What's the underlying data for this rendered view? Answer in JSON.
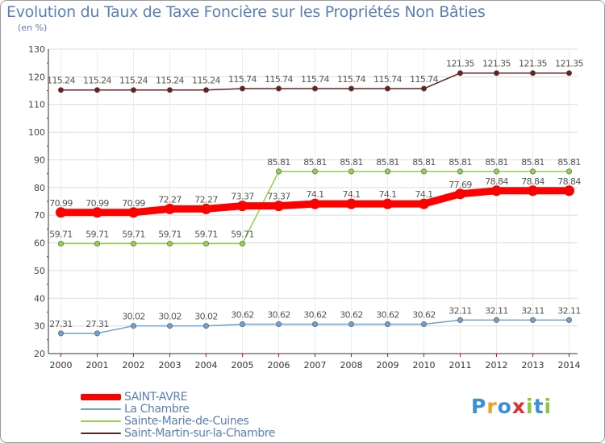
{
  "chart_data": {
    "type": "line",
    "title": "Evolution du Taux de Taxe Foncière sur les Propriétés Non Bâties",
    "ylabel": "(en %)",
    "xlabel": "",
    "ylim": [
      20,
      130
    ],
    "yticks": [
      20,
      30,
      40,
      50,
      60,
      70,
      80,
      90,
      100,
      110,
      120,
      130
    ],
    "categories": [
      "2000",
      "2001",
      "2002",
      "2003",
      "2004",
      "2005",
      "2006",
      "2007",
      "2008",
      "2009",
      "2010",
      "2011",
      "2012",
      "2013",
      "2014"
    ],
    "grid": true,
    "series": [
      {
        "name": "Saint-Martin-sur-la-Chambre",
        "color": "#6b1f1f",
        "width": 1.5,
        "values": [
          115.24,
          115.24,
          115.24,
          115.24,
          115.24,
          115.74,
          115.74,
          115.74,
          115.74,
          115.74,
          115.74,
          121.35,
          121.35,
          121.35,
          121.35
        ],
        "labels": [
          "115.24",
          "115.24",
          "115.24",
          "115.24",
          "115.24",
          "115.74",
          "115.74",
          "115.74",
          "115.74",
          "115.74",
          "115.74",
          "121.35",
          "121.35",
          "121.35",
          "121.35"
        ]
      },
      {
        "name": "Sainte-Marie-de-Cuines",
        "color": "#8ed34a",
        "width": 1.5,
        "values": [
          59.71,
          59.71,
          59.71,
          59.71,
          59.71,
          59.71,
          85.81,
          85.81,
          85.81,
          85.81,
          85.81,
          85.81,
          85.81,
          85.81,
          85.81
        ],
        "labels": [
          "59.71",
          "59.71",
          "59.71",
          "59.71",
          "59.71",
          "59.71",
          "85.81",
          "85.81",
          "85.81",
          "85.81",
          "85.81",
          "85.81",
          "85.81",
          "85.81",
          "85.81"
        ]
      },
      {
        "name": "SAINT-AVRE",
        "color": "#ff0000",
        "width": 9,
        "values": [
          70.99,
          70.99,
          70.99,
          72.27,
          72.27,
          73.37,
          73.37,
          74.1,
          74.1,
          74.1,
          74.1,
          77.69,
          78.84,
          78.84,
          78.84
        ],
        "labels": [
          "70.99",
          "70.99",
          "70.99",
          "72.27",
          "72.27",
          "73.37",
          "73.37",
          "74.1",
          "74.1",
          "74.1",
          "74.1",
          "77.69",
          "78.84",
          "78.84",
          "78.84"
        ]
      },
      {
        "name": "La Chambre",
        "color": "#6fa2d1",
        "width": 1.5,
        "values": [
          27.31,
          27.31,
          30.02,
          30.02,
          30.02,
          30.62,
          30.62,
          30.62,
          30.62,
          30.62,
          30.62,
          32.11,
          32.11,
          32.11,
          32.11
        ],
        "labels": [
          "27.31",
          "27.31",
          "30.02",
          "30.02",
          "30.02",
          "30.62",
          "30.62",
          "30.62",
          "30.62",
          "30.62",
          "30.62",
          "32.11",
          "32.11",
          "32.11",
          "32.11"
        ]
      }
    ],
    "legend": [
      {
        "name": "SAINT-AVRE",
        "color": "#ff0000"
      },
      {
        "name": "La Chambre",
        "color": "#6fa2d1"
      },
      {
        "name": "Sainte-Marie-de-Cuines",
        "color": "#8ed34a"
      },
      {
        "name": "Saint-Martin-sur-la-Chambre",
        "color": "#6b1f1f"
      }
    ]
  },
  "logo": {
    "text": "Proxiti",
    "letters": [
      "P",
      "r",
      "o",
      "x",
      "i",
      "t",
      "i"
    ],
    "colors": [
      "#3b8fd9",
      "#f0a020",
      "#3b8fd9",
      "#e03030",
      "#8cc63f",
      "#3b8fd9",
      "#8cc63f"
    ]
  }
}
